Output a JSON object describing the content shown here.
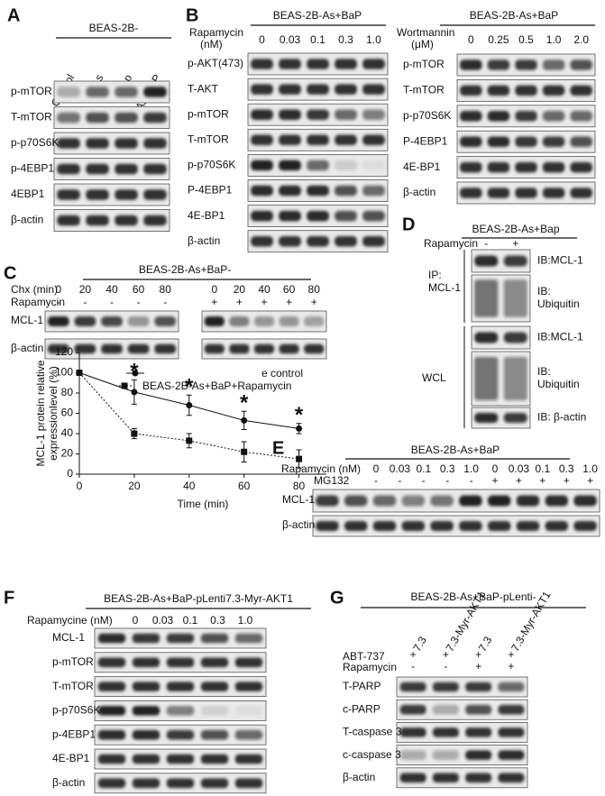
{
  "panel_a": {
    "label": "A",
    "cell_line": "BEAS-2B-",
    "lanes": [
      "Control",
      "As",
      "Bap",
      "As+BaP"
    ],
    "rows": [
      "p-mTOR",
      "T-mTOR",
      "p-p70S6K",
      "p-4EBP1",
      "4EBP1",
      "β-actin"
    ]
  },
  "panel_b": {
    "label": "B",
    "left": {
      "cell_line": "BEAS-2B-As+BaP",
      "treatment": "Rapamycin",
      "unit": "(nM)",
      "doses": [
        "0",
        "0.03",
        "0.1",
        "0.3",
        "1.0"
      ],
      "rows": [
        "p-AKT(473)",
        "T-AKT",
        "p-mTOR",
        "T-mTOR",
        "p-p70S6K",
        "P-4EBP1",
        "4E-BP1",
        "β-actin"
      ]
    },
    "right": {
      "cell_line": "BEAS-2B-As+BaP",
      "treatment": "Wortmannin",
      "unit": "(μM)",
      "doses": [
        "0",
        "0.25",
        "0.5",
        "1.0",
        "2.0"
      ],
      "rows": [
        "p-mTOR",
        "T-mTOR",
        "p-p70S6K",
        "P-4EBP1",
        "4E-BP1",
        "β-actin"
      ]
    }
  },
  "panel_c": {
    "label": "C",
    "cell_line": "BEAS-2B-As+BaP-",
    "chx_label": "Chx (min)",
    "chx_left": [
      "0",
      "20",
      "40",
      "60",
      "80"
    ],
    "chx_right": [
      "0",
      "20",
      "40",
      "60",
      "80"
    ],
    "rapamycin_label": "Rapamycin",
    "rapamycin_left": [
      "-",
      "-",
      "-",
      "-",
      "-"
    ],
    "rapamycin_right": [
      "+",
      "+",
      "+",
      "+",
      "+"
    ],
    "rows": [
      "MCL-1",
      "β-actin"
    ]
  },
  "panel_d": {
    "label": "D",
    "cell_line": "BEAS-2B-As+Bap",
    "rapamycin_label": "Rapamycin",
    "rapamycin": [
      "-",
      "+"
    ],
    "ip_label": [
      "IP:",
      "MCL-1"
    ],
    "ip_blots": [
      [
        "IB:MCL-1"
      ],
      [
        "IB:",
        "Ubiquitin"
      ]
    ],
    "wcl_label": "WCL",
    "wcl_blots": [
      [
        "IB:MCL-1"
      ],
      [
        "IB:",
        "Ubiquitin"
      ],
      [
        "IB: β-actin"
      ]
    ]
  },
  "panel_e": {
    "label": "E",
    "cell_line": "BEAS-2B-As+BaP",
    "rapamycin_label": "Rapamycin (nM)",
    "doses": [
      "0",
      "0.03",
      "0.1",
      "0.3",
      "1.0",
      "0",
      "0.03",
      "0.1",
      "0.3",
      "1.0"
    ],
    "mg132_label": "MG132",
    "mg132": [
      "-",
      "-",
      "-",
      "-",
      "-",
      "+",
      "+",
      "+",
      "+",
      "+"
    ],
    "rows": [
      "MCL-1",
      "β-actin"
    ]
  },
  "panel_f": {
    "label": "F",
    "cell_line": "BEAS-2B-As+BaP-pLenti7.3-Myr-AKT1",
    "rapamycine_label": "Rapamycine (nM)",
    "doses": [
      "0",
      "0.03",
      "0.1",
      "0.3",
      "1.0"
    ],
    "rows": [
      "MCL-1",
      "p-mTOR",
      "T-mTOR",
      "p-p70S6K",
      "p-4EBP1",
      "4E-BP1",
      "β-actin"
    ]
  },
  "panel_g": {
    "label": "G",
    "cell_line": "BEAS-2B-As+BaP-pLenti-",
    "lanes": [
      "7.3",
      "7.3-Myr-AKT1",
      "7.3",
      "7.3-Myr-AKT1"
    ],
    "abt_label": "ABT-737",
    "abt": [
      "+",
      "+",
      "+",
      "+"
    ],
    "rapamycin_label": "Rapamycin",
    "rapamycin": [
      "-",
      "-",
      "+",
      "+"
    ],
    "rows": [
      "T-PARP",
      "c-PARP",
      "T-caspase 3",
      "c-caspase 3",
      "β-actin"
    ]
  },
  "chart_data": {
    "type": "line",
    "x_label": "Time (min)",
    "y_label": [
      "MCL-1 protein relative",
      "expressionlevel (%)"
    ],
    "x": [
      0,
      20,
      40,
      60,
      80
    ],
    "xlim": [
      0,
      90
    ],
    "xticks": [
      0,
      20,
      40,
      60,
      80
    ],
    "ylim": [
      0,
      120
    ],
    "yticks": [
      0,
      20,
      40,
      60,
      80,
      100,
      120
    ],
    "series": [
      {
        "name": "e control",
        "color": "#111111",
        "marker": "circle",
        "line_style": "solid",
        "values": [
          100,
          81,
          68,
          53,
          45
        ],
        "errors": [
          0,
          12,
          10,
          9,
          5
        ]
      },
      {
        "name": "BEAS-2B-As+BaP+Rapamycin",
        "color": "#111111",
        "marker": "square",
        "line_style": "dotted",
        "values": [
          100,
          40,
          33,
          22,
          15
        ],
        "errors": [
          0,
          5,
          7,
          10,
          9
        ]
      }
    ],
    "significance": [
      null,
      "*",
      "*",
      "*",
      "*"
    ]
  }
}
